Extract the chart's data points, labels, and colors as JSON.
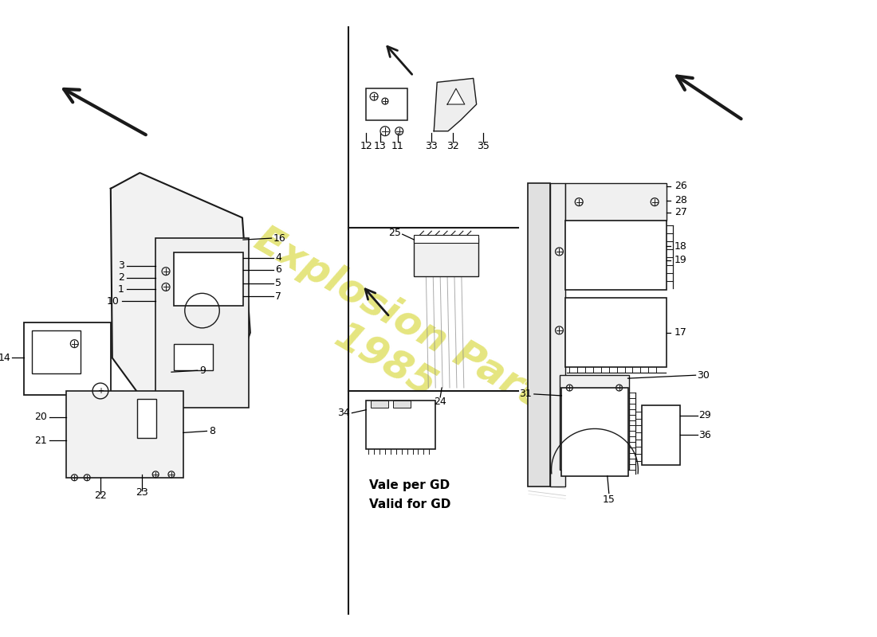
{
  "bg_color": "#ffffff",
  "line_color": "#1a1a1a",
  "watermark_color": "#cccc00",
  "note_line1": "Vale per GD",
  "note_line2": "Valid for GD",
  "figsize": [
    11.0,
    8.0
  ],
  "dpi": 100
}
